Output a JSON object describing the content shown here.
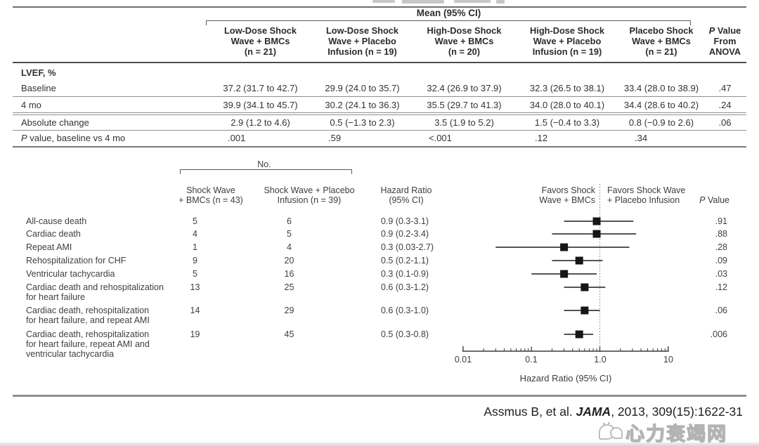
{
  "top_table": {
    "span_header": "Mean (95% CI)",
    "columns": [
      {
        "text": "Low-Dose Shock\nWave + BMCs\n(n = 21)"
      },
      {
        "text": "Low-Dose Shock\nWave + Placebo\nInfusion (n = 19)"
      },
      {
        "text": "High-Dose Shock\nWave + BMCs\n(n = 20)"
      },
      {
        "text": "High-Dose Shock\nWave + Placebo\nInfusion (n = 19)"
      },
      {
        "text": "Placebo Shock\nWave + BMCs\n(n = 21)"
      }
    ],
    "p_header": {
      "p": "P",
      "rest": " Value",
      "line2": "From",
      "line3": "ANOVA"
    },
    "section_label": "LVEF, %",
    "rows": [
      {
        "label": "Baseline",
        "values": [
          "37.2 (31.7 to 42.7)",
          "29.9 (24.0 to 35.7)",
          "32.4 (26.9 to 37.9)",
          "32.3 (26.5 to 38.1)",
          "33.4 (28.0 to 38.9)"
        ],
        "p": ".47"
      },
      {
        "label": "4 mo",
        "values": [
          "39.9 (34.1 to 45.7)",
          "30.2 (24.1 to 36.3)",
          "35.5 (29.7 to 41.3)",
          "34.0 (28.0 to 40.1)",
          "34.4 (28.6 to 40.2)"
        ],
        "p": ".24"
      },
      {
        "label": "Absolute change",
        "values": [
          "2.9 (1.2 to 4.6)",
          "0.5 (−1.3 to 2.3)",
          "3.5 (1.9 to 5.2)",
          "1.5 (−0.4 to 3.3)",
          "0.8 (−0.9 to 2.6)"
        ],
        "p": ".06"
      },
      {
        "label_p": "P",
        "label_rest": " value, baseline vs 4 mo",
        "values": [
          ".001",
          ".59",
          "<.001",
          ".12",
          ".34"
        ],
        "p": ""
      }
    ]
  },
  "forest": {
    "no_label": "No.",
    "col1_header": "Shock Wave\n+ BMCs (n = 43)",
    "col2_header": "Shock Wave + Placebo\nInfusion (n = 39)",
    "hr_header": "Hazard Ratio\n(95% CI)",
    "favors_left": "Favors Shock\nWave + BMCs",
    "favors_right": "Favors Shock Wave\n+ Placebo Infusion",
    "p_header": {
      "p": "P",
      "rest": " Value"
    }
  },
  "chart_data": {
    "type": "scatter",
    "subtype": "forest-plot",
    "xlabel": "Hazard Ratio (95% CI)",
    "x_scale": "log",
    "x_ticks": [
      "0.01",
      "0.1",
      "1.0",
      "10"
    ],
    "x_tick_values": [
      0.01,
      0.1,
      1.0,
      10
    ],
    "xlim": [
      0.01,
      10
    ],
    "reference_line": 1.0,
    "grid": false,
    "rows": [
      {
        "label": "All-cause death",
        "n_bmcs": "5",
        "n_placebo": "6",
        "hr": 0.9,
        "ci_low": 0.3,
        "ci_high": 3.1,
        "hr_text": "0.9 (0.3-3.1)",
        "p": ".91"
      },
      {
        "label": "Cardiac death",
        "n_bmcs": "4",
        "n_placebo": "5",
        "hr": 0.9,
        "ci_low": 0.2,
        "ci_high": 3.4,
        "hr_text": "0.9 (0.2-3.4)",
        "p": ".88"
      },
      {
        "label": "Repeat AMI",
        "n_bmcs": "1",
        "n_placebo": "4",
        "hr": 0.3,
        "ci_low": 0.03,
        "ci_high": 2.7,
        "hr_text": "0.3 (0.03-2.7)",
        "p": ".28"
      },
      {
        "label": "Rehospitalization for CHF",
        "n_bmcs": "9",
        "n_placebo": "20",
        "hr": 0.5,
        "ci_low": 0.2,
        "ci_high": 1.1,
        "hr_text": "0.5 (0.2-1.1)",
        "p": ".09"
      },
      {
        "label": "Ventricular tachycardia",
        "n_bmcs": "5",
        "n_placebo": "16",
        "hr": 0.3,
        "ci_low": 0.1,
        "ci_high": 0.9,
        "hr_text": "0.3 (0.1-0.9)",
        "p": ".03"
      },
      {
        "label": "Cardiac death and rehospitalization\nfor heart failure",
        "n_bmcs": "13",
        "n_placebo": "25",
        "hr": 0.6,
        "ci_low": 0.3,
        "ci_high": 1.2,
        "hr_text": "0.6 (0.3-1.2)",
        "p": ".12"
      },
      {
        "label": "Cardiac death, rehospitalization\nfor heart failure, and repeat AMI",
        "n_bmcs": "14",
        "n_placebo": "29",
        "hr": 0.6,
        "ci_low": 0.3,
        "ci_high": 1.0,
        "hr_text": "0.6 (0.3-1.0)",
        "p": ".06"
      },
      {
        "label": "Cardiac death, rehospitalization\nfor heart failure, repeat AMI and\nventricular tachycardia",
        "n_bmcs": "19",
        "n_placebo": "45",
        "hr": 0.5,
        "ci_low": 0.3,
        "ci_high": 0.8,
        "hr_text": "0.5 (0.3-0.8)",
        "p": ".006"
      }
    ]
  },
  "citation": {
    "pre": "Assmus B, et al. ",
    "journal": "JAMA",
    "post": ", 2013, 309(15):1622-31"
  },
  "watermark": {
    "text": "心力衰竭网"
  },
  "colors": {
    "marker": "#161616",
    "line": "#3c3c3c",
    "rule": "#6e6e6e",
    "watermark_gray": "#b3b3b3"
  }
}
